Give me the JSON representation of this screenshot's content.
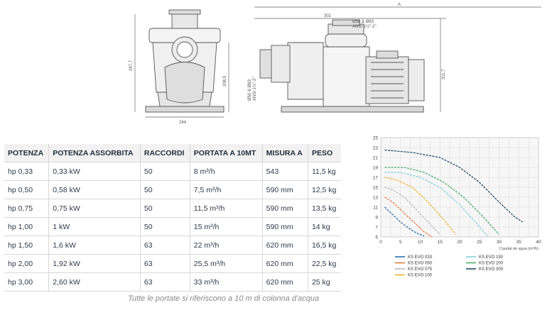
{
  "drawing": {
    "front_width": "244",
    "front_height": "297,7",
    "front_mid": "208,5",
    "side_length_a": "A",
    "side_top": "302",
    "side_height": "311,7",
    "port_top": "Ø50 & Ø63",
    "port_top_ansi": "ANSI 1½\"-2\"",
    "port_side": "Ø50 & Ø63",
    "port_side_ansi": "ANSI 1½\"-2\""
  },
  "table": {
    "headers": [
      "POTENZA",
      "POTENZA ASSORBITA",
      "RACCORDI",
      "PORTATA A 10MT",
      "MISURA A",
      "PESO"
    ],
    "rows": [
      [
        "hp 0,33",
        "0,33 kW",
        "50",
        "8 m³/h",
        "543",
        "11,5 kg"
      ],
      [
        "hp 0,50",
        "0,58 kW",
        "50",
        "7,5 m³/h",
        "590 mm",
        "12,5 kg"
      ],
      [
        "hp 0,75",
        "0,75 kW",
        "50",
        "11,5 m³/h",
        "590 mm",
        "13,5 kg"
      ],
      [
        "hp 1,00",
        "1 kW",
        "50",
        "15 m³/h",
        "590 mm",
        "14 kg"
      ],
      [
        "hp 1,50",
        "1,6 kW",
        "63",
        "22 m³/h",
        "620 mm",
        "16,5 kg"
      ],
      [
        "hp 2,00",
        "1,92 kW",
        "63",
        "25,5 m³/h",
        "620 mm",
        "22,5 kg"
      ],
      [
        "hp 3,00",
        "2,60 kW",
        "63",
        "33 m³/h",
        "620 mm",
        "25 kg"
      ]
    ],
    "note": "Tutte le portate si riferiscono a 10 m di colonna d'acqua"
  },
  "chart_data": {
    "type": "line",
    "title": "",
    "xlabel": "Caudal de agua (m³/h)",
    "ylabel": "",
    "xlim": [
      0,
      40
    ],
    "ylim": [
      5,
      25
    ],
    "xticks": [
      0,
      5,
      10,
      15,
      20,
      25,
      30,
      35,
      40
    ],
    "yticks": [
      5,
      7,
      9,
      11,
      13,
      15,
      17,
      19,
      21,
      23,
      25
    ],
    "grid": true,
    "legend_position": "bottom",
    "series": [
      {
        "name": "KS EVO 033",
        "color": "#2f6fb0",
        "x": [
          1,
          3,
          5,
          7,
          9,
          11
        ],
        "y": [
          11,
          9.5,
          8,
          6.8,
          5.8,
          5.2
        ]
      },
      {
        "name": "KS EVO 050",
        "color": "#e07a3a",
        "x": [
          1,
          3,
          5,
          7,
          9,
          11,
          13
        ],
        "y": [
          13,
          12,
          10.5,
          9,
          7.5,
          6,
          5
        ]
      },
      {
        "name": "KS EVO 075",
        "color": "#b9b9b9",
        "x": [
          1,
          3,
          6,
          9,
          12,
          15
        ],
        "y": [
          15,
          14.5,
          13,
          10.5,
          8,
          5.5
        ]
      },
      {
        "name": "KS EVO 100",
        "color": "#f0b030",
        "x": [
          1,
          4,
          8,
          12,
          16,
          19
        ],
        "y": [
          17,
          16.5,
          15,
          12,
          8.5,
          5.5
        ]
      },
      {
        "name": "KS EVO 150",
        "color": "#7fd0dc",
        "x": [
          1,
          5,
          10,
          15,
          20,
          24,
          27
        ],
        "y": [
          18,
          18,
          17,
          15,
          11.5,
          8,
          5.2
        ]
      },
      {
        "name": "KS EVO 200",
        "color": "#4aaa6a",
        "x": [
          1,
          6,
          11,
          16,
          21,
          26,
          30
        ],
        "y": [
          19,
          19,
          18,
          16,
          13,
          9,
          5.5
        ]
      },
      {
        "name": "KS EVO 300",
        "color": "#1e4a6a",
        "x": [
          1,
          8,
          15,
          20,
          25,
          30,
          34,
          36
        ],
        "y": [
          22.5,
          22,
          21,
          19,
          16,
          12,
          9,
          8
        ]
      }
    ]
  }
}
